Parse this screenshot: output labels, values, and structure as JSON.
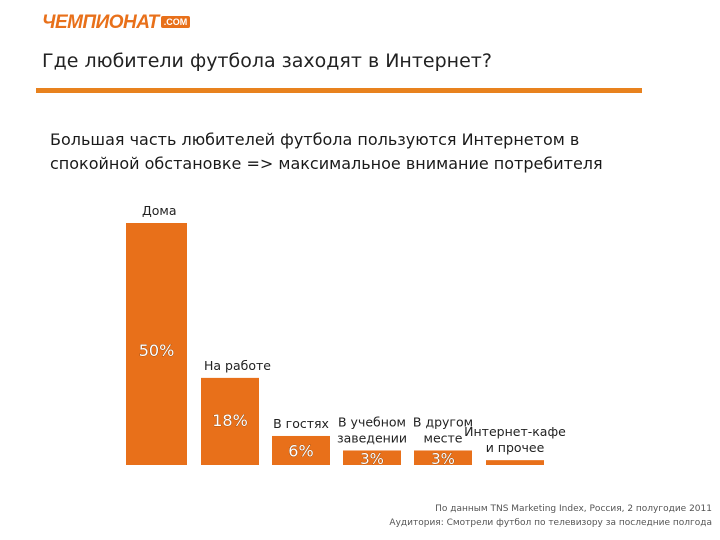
{
  "header": {
    "logo_text": "ЧЕМПИОНАТ",
    "logo_suffix": ".COM",
    "title": "Где любители футбола заходят в Интернет?",
    "accent_color": "#e8821e"
  },
  "subtitle_lines": [
    "Большая часть любителей футбола пользуются Интернетом в",
    "спокойной обстановке => максимальное внимание потребителя"
  ],
  "chart_data": {
    "type": "bar",
    "categories": [
      [
        "Дома"
      ],
      [
        "На работе"
      ],
      [
        "В гостях"
      ],
      [
        "В учебном",
        "заведении"
      ],
      [
        "В другом",
        "месте"
      ],
      [
        "Интернет-кафе",
        "и прочее"
      ]
    ],
    "values": [
      50,
      18,
      6,
      3,
      3,
      1
    ],
    "data_labels": [
      "50%",
      "18%",
      "6%",
      "3%",
      "3%",
      ""
    ],
    "bar_color": "#e8701a",
    "ylim": [
      0,
      50
    ],
    "grid": false,
    "legend": "none"
  },
  "footnote": [
    "По данным TNS Marketing Index, Россия, 2 полугодие 2011",
    "Аудитория: Смотрели футбол по телевизору за последние полгода"
  ]
}
